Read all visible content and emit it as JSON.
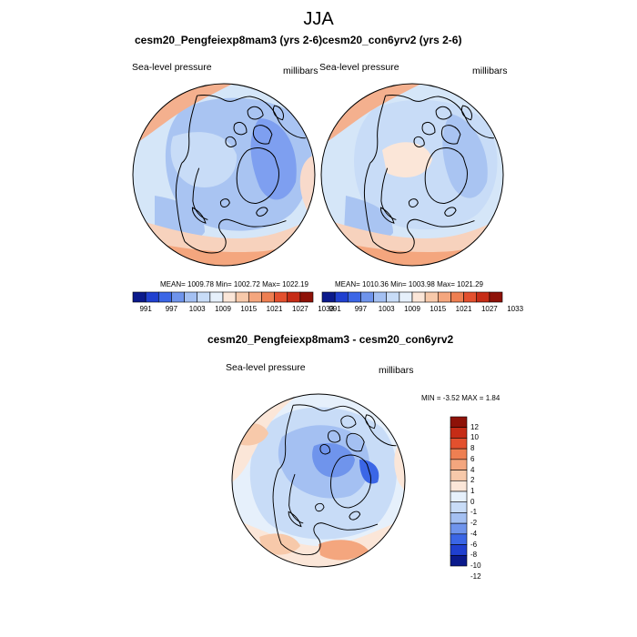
{
  "title": "JJA",
  "colors": {
    "ocean_base": "#d5e6f8",
    "continent_line": "#000000",
    "frame": "#000000"
  },
  "panels": [
    {
      "title": "cesm20_Pengfeiexp8mam3 (yrs 2-6)",
      "variable": "Sea-level pressure",
      "units": "millibars",
      "stats": "MEAN= 1009.78  Min= 1002.72  Max= 1022.19"
    },
    {
      "title": "cesm20_con6yrv2 (yrs 2-6)",
      "variable": "Sea-level pressure",
      "units": "millibars",
      "stats": "MEAN= 1010.36  Min= 1003.98  Max= 1021.29"
    },
    {
      "title": "cesm20_Pengfeiexp8mam3 - cesm20_con6yrv2",
      "variable": "Sea-level pressure",
      "units": "millibars",
      "stats": "MIN =  -3.52 MAX =   1.84"
    }
  ],
  "colorbar_abs": {
    "labels": [
      "991",
      "997",
      "1003",
      "1009",
      "1015",
      "1021",
      "1027",
      "1033"
    ],
    "colors": [
      "#0b1a8c",
      "#2040d0",
      "#3b66e6",
      "#6f94ec",
      "#a4c0f2",
      "#c8dcf7",
      "#e6f0fb",
      "#fbe6d8",
      "#f7c9aa",
      "#f4a67e",
      "#ee7f52",
      "#e3502e",
      "#c62c16",
      "#8e1208"
    ]
  },
  "colorbar_diff": {
    "labels": [
      "12",
      "10",
      "8",
      "6",
      "4",
      "2",
      "1",
      "0",
      "-1",
      "-2",
      "-4",
      "-6",
      "-8",
      "-10",
      "-12"
    ],
    "colors": [
      "#8e1208",
      "#c62c16",
      "#e3502e",
      "#ee7f52",
      "#f4a67e",
      "#f7c9aa",
      "#fbe6d8",
      "#e6f0fb",
      "#c8dcf7",
      "#a4c0f2",
      "#6f94ec",
      "#3b66e6",
      "#2040d0",
      "#0b1a8c"
    ]
  }
}
